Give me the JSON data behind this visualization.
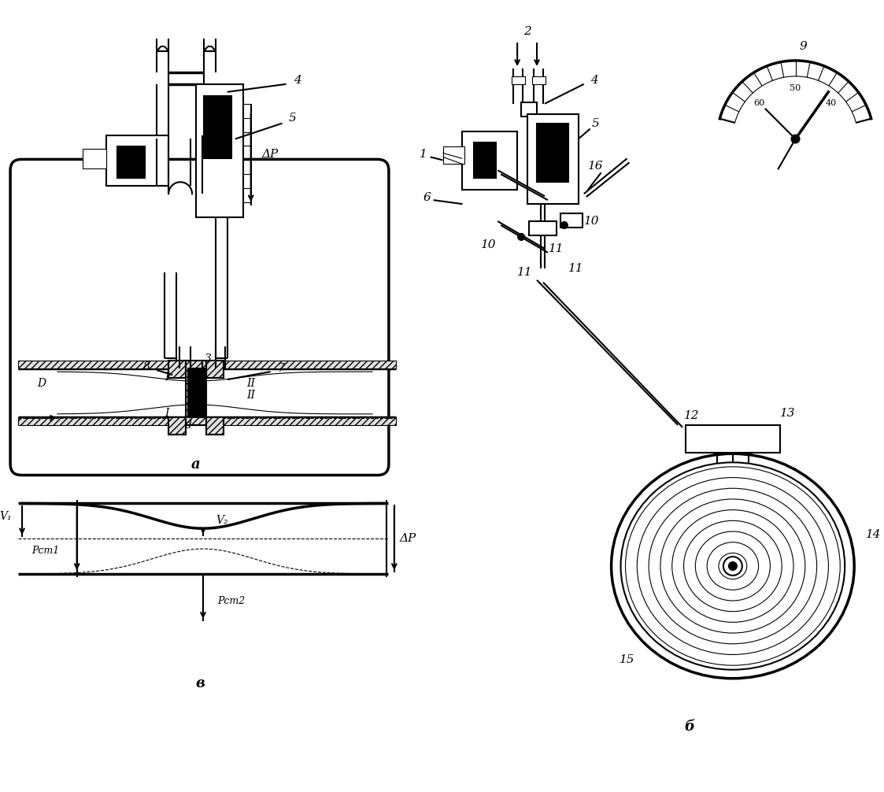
{
  "bg_color": "#ffffff",
  "lw_thin": 0.8,
  "lw_med": 1.5,
  "lw_thk": 2.5,
  "label_a": "a",
  "label_b": "б",
  "label_v": "в"
}
